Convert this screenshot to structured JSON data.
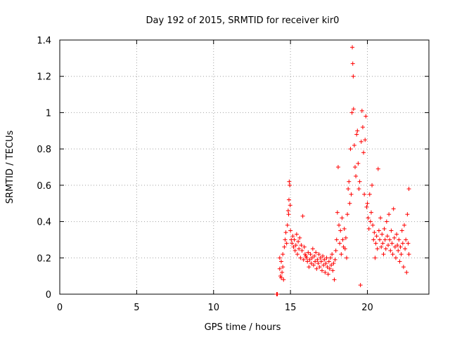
{
  "chart_data": {
    "type": "scatter",
    "title": "Day 192 of 2015, SRMTID for receiver kir0",
    "xlabel": "GPS time / hours",
    "ylabel": "SRMTID / TECUs",
    "xlim": [
      0,
      24
    ],
    "ylim": [
      0,
      1.4
    ],
    "xticks": [
      0,
      5,
      10,
      15,
      20
    ],
    "yticks": [
      0,
      0.2,
      0.4,
      0.6,
      0.8,
      1,
      1.2,
      1.4
    ],
    "xtick_labels": [
      "0",
      "5",
      "10",
      "15",
      "20"
    ],
    "ytick_labels": [
      "0",
      "0.2",
      "0.4",
      "0.6",
      "0.8",
      "1",
      "1.2",
      "1.4"
    ],
    "grid": true,
    "marker": "+",
    "color": "#ff0000",
    "series": [
      {
        "name": "SRMTID",
        "points": [
          [
            14.1,
            0.0
          ],
          [
            14.15,
            0.0
          ],
          [
            14.3,
            0.14
          ],
          [
            14.35,
            0.1
          ],
          [
            14.4,
            0.18
          ],
          [
            14.45,
            0.12
          ],
          [
            14.5,
            0.22
          ],
          [
            14.55,
            0.08
          ],
          [
            14.3,
            0.2
          ],
          [
            14.4,
            0.09
          ],
          [
            14.5,
            0.15
          ],
          [
            14.6,
            0.26
          ],
          [
            14.65,
            0.3
          ],
          [
            14.7,
            0.34
          ],
          [
            14.75,
            0.28
          ],
          [
            14.8,
            0.38
          ],
          [
            14.85,
            0.46
          ],
          [
            14.9,
            0.52
          ],
          [
            14.95,
            0.6
          ],
          [
            14.92,
            0.62
          ],
          [
            14.88,
            0.44
          ],
          [
            14.98,
            0.49
          ],
          [
            15.0,
            0.35
          ],
          [
            15.05,
            0.3
          ],
          [
            15.1,
            0.28
          ],
          [
            15.15,
            0.32
          ],
          [
            15.2,
            0.26
          ],
          [
            15.25,
            0.3
          ],
          [
            15.3,
            0.24
          ],
          [
            15.35,
            0.27
          ],
          [
            15.4,
            0.33
          ],
          [
            15.45,
            0.22
          ],
          [
            15.5,
            0.29
          ],
          [
            15.55,
            0.25
          ],
          [
            15.6,
            0.31
          ],
          [
            15.65,
            0.2
          ],
          [
            15.7,
            0.27
          ],
          [
            15.75,
            0.24
          ],
          [
            15.8,
            0.43
          ],
          [
            15.85,
            0.19
          ],
          [
            15.9,
            0.26
          ],
          [
            15.95,
            0.22
          ],
          [
            16.0,
            0.21
          ],
          [
            16.05,
            0.2
          ],
          [
            16.1,
            0.18
          ],
          [
            16.15,
            0.23
          ],
          [
            16.2,
            0.15
          ],
          [
            16.25,
            0.19
          ],
          [
            16.3,
            0.22
          ],
          [
            16.35,
            0.17
          ],
          [
            16.4,
            0.2
          ],
          [
            16.45,
            0.25
          ],
          [
            16.5,
            0.16
          ],
          [
            16.55,
            0.21
          ],
          [
            16.6,
            0.18
          ],
          [
            16.65,
            0.23
          ],
          [
            16.7,
            0.14
          ],
          [
            16.75,
            0.19
          ],
          [
            16.8,
            0.17
          ],
          [
            16.85,
            0.22
          ],
          [
            16.9,
            0.15
          ],
          [
            16.95,
            0.2
          ],
          [
            17.0,
            0.18
          ],
          [
            17.05,
            0.13
          ],
          [
            17.1,
            0.21
          ],
          [
            17.15,
            0.16
          ],
          [
            17.2,
            0.19
          ],
          [
            17.25,
            0.12
          ],
          [
            17.3,
            0.17
          ],
          [
            17.35,
            0.2
          ],
          [
            17.4,
            0.15
          ],
          [
            17.45,
            0.11
          ],
          [
            17.5,
            0.18
          ],
          [
            17.55,
            0.14
          ],
          [
            17.6,
            0.2
          ],
          [
            17.65,
            0.16
          ],
          [
            17.7,
            0.22
          ],
          [
            17.75,
            0.13
          ],
          [
            17.8,
            0.17
          ],
          [
            17.85,
            0.08
          ],
          [
            17.9,
            0.19
          ],
          [
            17.95,
            0.24
          ],
          [
            18.0,
            0.3
          ],
          [
            18.05,
            0.45
          ],
          [
            18.1,
            0.7
          ],
          [
            18.15,
            0.38
          ],
          [
            18.2,
            0.28
          ],
          [
            18.25,
            0.35
          ],
          [
            18.3,
            0.22
          ],
          [
            18.35,
            0.42
          ],
          [
            18.4,
            0.3
          ],
          [
            18.45,
            0.26
          ],
          [
            18.5,
            0.36
          ],
          [
            18.55,
            0.25
          ],
          [
            18.6,
            0.31
          ],
          [
            18.65,
            0.2
          ],
          [
            18.7,
            0.44
          ],
          [
            18.75,
            0.58
          ],
          [
            18.8,
            0.62
          ],
          [
            18.85,
            0.5
          ],
          [
            18.9,
            0.8
          ],
          [
            18.95,
            0.55
          ],
          [
            19.0,
            1.0
          ],
          [
            19.02,
            1.36
          ],
          [
            19.05,
            1.27
          ],
          [
            19.08,
            1.2
          ],
          [
            19.1,
            1.02
          ],
          [
            19.15,
            0.82
          ],
          [
            19.2,
            0.7
          ],
          [
            19.25,
            0.65
          ],
          [
            19.3,
            0.88
          ],
          [
            19.35,
            0.9
          ],
          [
            19.4,
            0.72
          ],
          [
            19.45,
            0.58
          ],
          [
            19.5,
            0.62
          ],
          [
            19.55,
            0.05
          ],
          [
            19.6,
            0.84
          ],
          [
            19.65,
            1.01
          ],
          [
            19.7,
            0.92
          ],
          [
            19.75,
            0.78
          ],
          [
            19.8,
            0.55
          ],
          [
            19.85,
            0.85
          ],
          [
            19.9,
            0.98
          ],
          [
            19.95,
            0.48
          ],
          [
            20.0,
            0.5
          ],
          [
            20.05,
            0.42
          ],
          [
            20.1,
            0.36
          ],
          [
            20.15,
            0.55
          ],
          [
            20.2,
            0.4
          ],
          [
            20.25,
            0.45
          ],
          [
            20.3,
            0.6
          ],
          [
            20.35,
            0.38
          ],
          [
            20.4,
            0.3
          ],
          [
            20.45,
            0.34
          ],
          [
            20.5,
            0.2
          ],
          [
            20.55,
            0.28
          ],
          [
            20.6,
            0.32
          ],
          [
            20.65,
            0.25
          ],
          [
            20.7,
            0.69
          ],
          [
            20.75,
            0.35
          ],
          [
            20.8,
            0.3
          ],
          [
            20.85,
            0.42
          ],
          [
            20.9,
            0.26
          ],
          [
            20.95,
            0.33
          ],
          [
            21.0,
            0.28
          ],
          [
            21.05,
            0.22
          ],
          [
            21.1,
            0.36
          ],
          [
            21.15,
            0.3
          ],
          [
            21.2,
            0.25
          ],
          [
            21.25,
            0.4
          ],
          [
            21.3,
            0.32
          ],
          [
            21.35,
            0.27
          ],
          [
            21.4,
            0.44
          ],
          [
            21.45,
            0.3
          ],
          [
            21.5,
            0.24
          ],
          [
            21.55,
            0.35
          ],
          [
            21.6,
            0.28
          ],
          [
            21.65,
            0.22
          ],
          [
            21.7,
            0.47
          ],
          [
            21.75,
            0.31
          ],
          [
            21.8,
            0.26
          ],
          [
            21.85,
            0.2
          ],
          [
            21.9,
            0.33
          ],
          [
            21.95,
            0.27
          ],
          [
            22.0,
            0.24
          ],
          [
            22.05,
            0.3
          ],
          [
            22.1,
            0.18
          ],
          [
            22.15,
            0.26
          ],
          [
            22.2,
            0.22
          ],
          [
            22.25,
            0.35
          ],
          [
            22.3,
            0.28
          ],
          [
            22.35,
            0.15
          ],
          [
            22.4,
            0.38
          ],
          [
            22.45,
            0.25
          ],
          [
            22.5,
            0.3
          ],
          [
            22.55,
            0.12
          ],
          [
            22.6,
            0.44
          ],
          [
            22.65,
            0.28
          ],
          [
            22.7,
            0.58
          ],
          [
            22.7,
            0.22
          ]
        ]
      }
    ]
  }
}
